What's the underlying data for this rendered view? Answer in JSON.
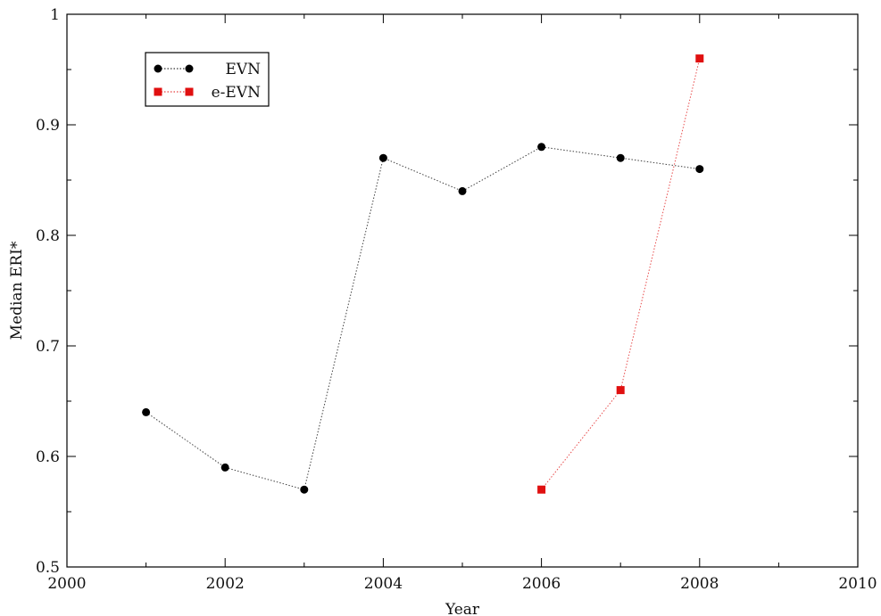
{
  "chart_data": {
    "type": "line",
    "xlabel": "Year",
    "ylabel": "Median ERI*",
    "xlim": [
      2000,
      2010
    ],
    "ylim": [
      0.5,
      1
    ],
    "xticks": [
      2000,
      2002,
      2004,
      2006,
      2008,
      2010
    ],
    "xtick_labels": [
      "2000",
      "2002",
      "2004",
      "2006",
      "2008",
      "2010"
    ],
    "yticks": [
      0.5,
      0.6,
      0.7,
      0.8,
      0.9,
      1
    ],
    "ytick_labels": [
      "0.5",
      "0.6",
      "0.7",
      "0.8",
      "0.9",
      "1"
    ],
    "grid": false,
    "legend_position": "top-left",
    "series": [
      {
        "name": "EVN",
        "color": "#000000",
        "marker": "circle",
        "line_style": "dotted",
        "x": [
          2001,
          2002,
          2003,
          2004,
          2005,
          2006,
          2007,
          2008
        ],
        "y": [
          0.64,
          0.59,
          0.57,
          0.87,
          0.84,
          0.88,
          0.87,
          0.86
        ]
      },
      {
        "name": "e-EVN",
        "color": "#e01010",
        "marker": "square",
        "line_style": "dotted",
        "x": [
          2006,
          2007,
          2008
        ],
        "y": [
          0.57,
          0.66,
          0.96
        ]
      }
    ]
  }
}
